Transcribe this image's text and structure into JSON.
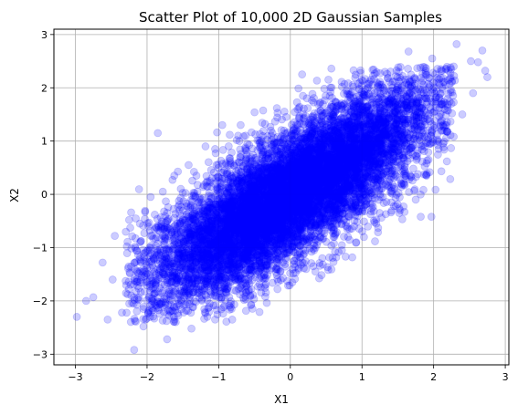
{
  "chart_data": {
    "type": "scatter",
    "title": "Scatter Plot of 10,000 2D Gaussian Samples",
    "xlabel": "X1",
    "ylabel": "X2",
    "xlim": [
      -3.3,
      3.05
    ],
    "ylim": [
      -3.2,
      3.1
    ],
    "xticks": [
      -3,
      -2,
      -1,
      0,
      1,
      2,
      3
    ],
    "yticks": [
      -3,
      -2,
      -1,
      0,
      1,
      2,
      3
    ],
    "xtick_labels": [
      "−3",
      "−2",
      "−1",
      "0",
      "1",
      "2",
      "3"
    ],
    "ytick_labels": [
      "−3",
      "−2",
      "−1",
      "0",
      "1",
      "2",
      "3"
    ],
    "grid": true,
    "marker_color": "#0000ff",
    "marker_alpha": 0.2,
    "n_samples": 10000,
    "distribution": {
      "mean": [
        0,
        0
      ],
      "std": [
        1,
        1
      ],
      "correlation": 0.8
    },
    "series": [
      {
        "values": [
          [
            -2.98,
            -2.3
          ],
          [
            -2.18,
            -2.92
          ],
          [
            -2.75,
            -1.93
          ],
          [
            -2.35,
            -2.22
          ],
          [
            -2.45,
            -0.78
          ],
          [
            -1.72,
            -2.72
          ],
          [
            -2.1,
            -0.55
          ],
          [
            -1.78,
            0.05
          ],
          [
            -1.42,
            0.55
          ],
          [
            -1.05,
            0.85
          ],
          [
            -0.95,
            1.3
          ],
          [
            -0.25,
            1.15
          ],
          [
            0.12,
            1.62
          ],
          [
            0.72,
            2.02
          ],
          [
            0.98,
            2.28
          ],
          [
            1.32,
            2.3
          ],
          [
            1.65,
            2.68
          ],
          [
            1.98,
            2.55
          ],
          [
            2.28,
            2.4
          ],
          [
            2.32,
            2.82
          ],
          [
            2.52,
            2.5
          ],
          [
            2.68,
            2.7
          ],
          [
            2.75,
            2.2
          ],
          [
            2.72,
            2.32
          ],
          [
            2.55,
            1.9
          ],
          [
            2.4,
            1.5
          ],
          [
            2.18,
            1.3
          ],
          [
            2.05,
            1.0
          ],
          [
            1.9,
            0.35
          ],
          [
            1.75,
            -0.1
          ],
          [
            1.52,
            -0.35
          ],
          [
            1.2,
            -0.55
          ],
          [
            0.92,
            -0.9
          ],
          [
            0.72,
            -1.05
          ],
          [
            0.35,
            -1.45
          ],
          [
            0.32,
            -1.35
          ],
          [
            -0.18,
            -1.78
          ],
          [
            -0.35,
            -1.92
          ],
          [
            -0.55,
            -2.08
          ],
          [
            -0.82,
            -2.15
          ],
          [
            -1.05,
            -2.35
          ],
          [
            -1.38,
            -2.52
          ],
          [
            -1.62,
            -2.35
          ],
          [
            -2.02,
            -2.35
          ],
          [
            -2.22,
            -1.9
          ],
          [
            -2.48,
            -1.6
          ],
          [
            -2.62,
            -1.28
          ],
          [
            -2.25,
            -0.48
          ],
          [
            -1.95,
            -0.05
          ],
          [
            -1.62,
            0.35
          ],
          [
            -1.85,
            1.15
          ],
          [
            -0.6,
            0.95
          ],
          [
            0.55,
            1.85
          ],
          [
            1.55,
            2.15
          ],
          [
            1.82,
            -0.42
          ],
          [
            -2.85,
            -2.0
          ],
          [
            -2.55,
            -2.35
          ],
          [
            -2.05,
            -2.48
          ],
          [
            2.1,
            2.35
          ],
          [
            2.62,
            2.48
          ]
        ]
      }
    ]
  }
}
